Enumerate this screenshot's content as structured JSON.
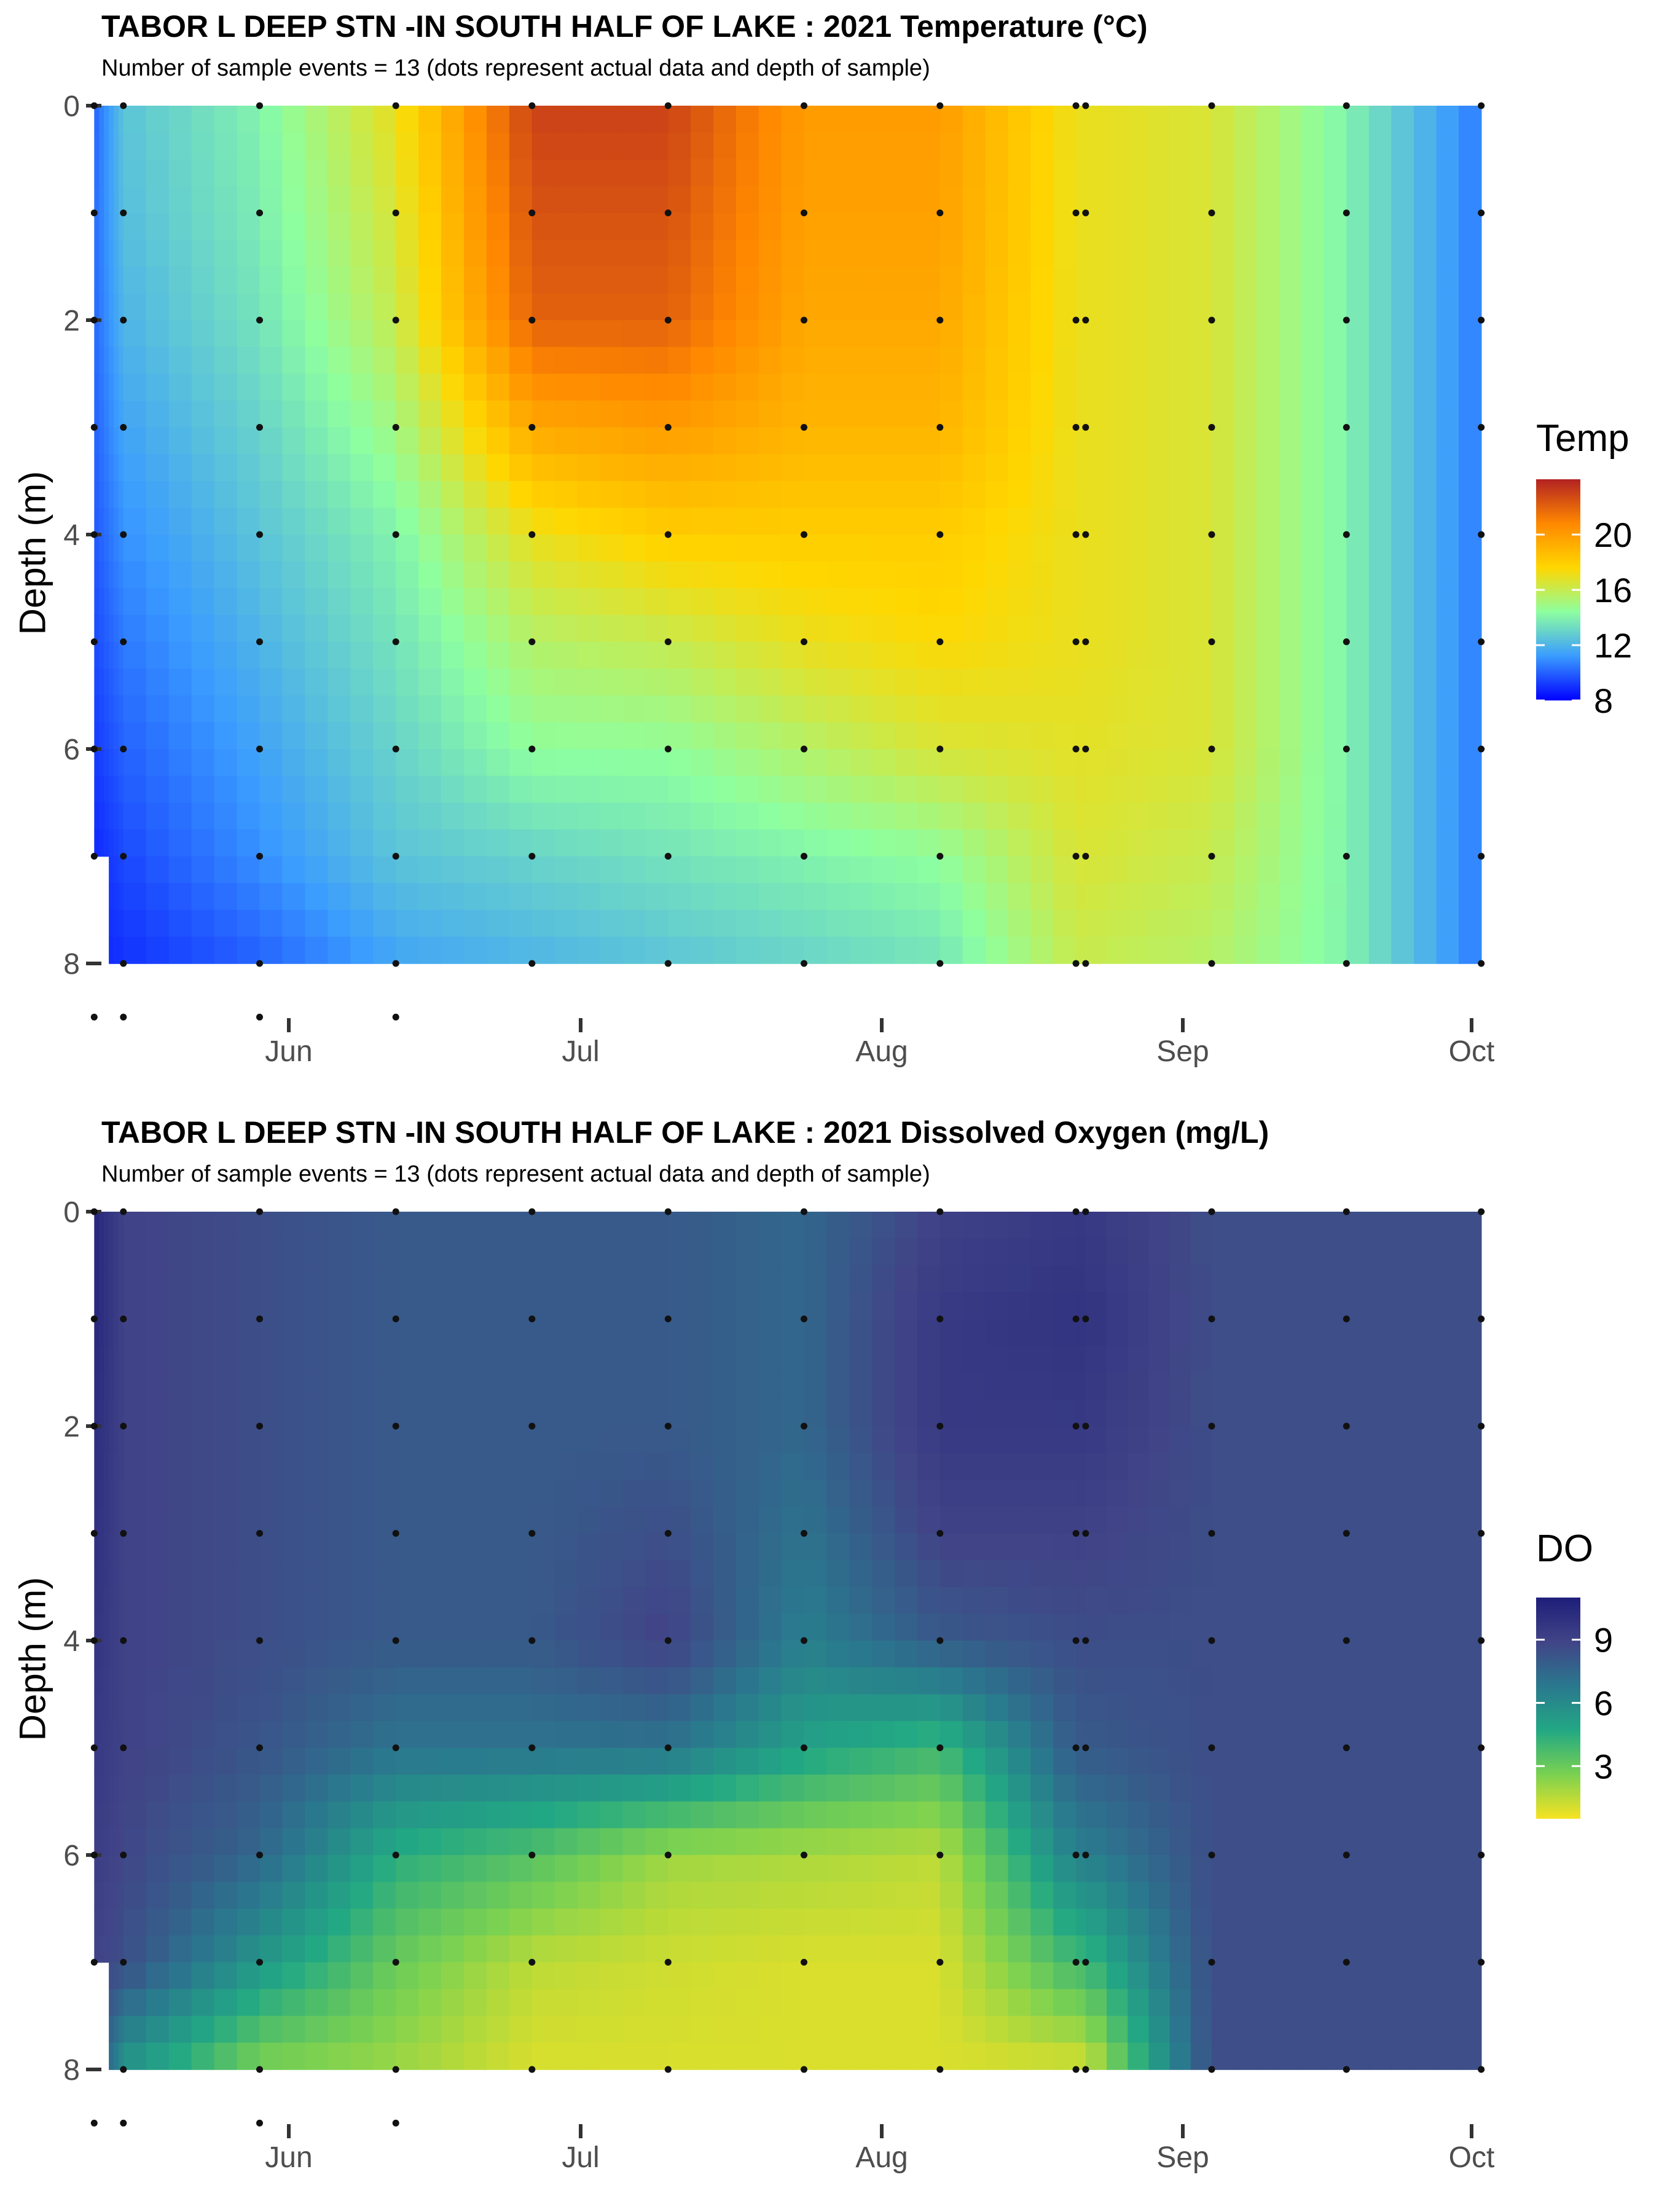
{
  "chart_data": [
    {
      "type": "heatmap",
      "id": "temp",
      "title": "TABOR L DEEP STN -IN SOUTH HALF OF LAKE :  2021 Temperature (°C)",
      "subtitle": "Number of sample events = 13 (dots represent actual data and depth of sample)",
      "ylabel": "Depth (m)",
      "xlabel": "",
      "x_ticks": [
        "Jun",
        "Jul",
        "Aug",
        "Sep",
        "Oct"
      ],
      "y_ticks": [
        "0",
        "2",
        "4",
        "6",
        "8"
      ],
      "ylim": [
        8.6,
        0
      ],
      "legend_title": "Temp",
      "legend_ticks": [
        "20",
        "16",
        "12",
        "8"
      ],
      "legend_range": [
        8,
        24
      ],
      "colors": [
        "#0000ff",
        "#3a9bff",
        "#8dffa0",
        "#ffd700",
        "#ff8800",
        "#b22222"
      ],
      "sample_dates": [
        "2021-05-12",
        "2021-05-15",
        "2021-05-29",
        "2021-06-12",
        "2021-06-26",
        "2021-07-10",
        "2021-07-24",
        "2021-08-07",
        "2021-08-21",
        "2021-08-22",
        "2021-09-04",
        "2021-09-18",
        "2021-10-02"
      ],
      "depths": [
        0,
        1,
        2,
        3,
        4,
        5,
        6,
        7,
        8
      ],
      "values": [
        [
          10.0,
          10.2,
          10.1,
          10.0,
          9.8,
          9.5,
          9.2,
          8.8,
          null
        ],
        [
          12.5,
          12.3,
          12.0,
          11.5,
          11.0,
          10.5,
          10.0,
          9.5,
          9.0
        ],
        [
          14.0,
          13.8,
          13.5,
          13.0,
          12.5,
          12.0,
          11.5,
          11.0,
          10.0
        ],
        [
          17.0,
          16.5,
          16.0,
          15.0,
          14.0,
          13.5,
          13.0,
          12.5,
          11.5
        ],
        [
          23.0,
          22.5,
          22.0,
          19.5,
          17.0,
          15.5,
          14.5,
          13.0,
          12.0
        ],
        [
          23.0,
          22.5,
          22.0,
          20.0,
          18.0,
          16.0,
          14.5,
          13.5,
          12.5
        ],
        [
          20.0,
          19.8,
          19.5,
          19.0,
          18.0,
          17.0,
          15.5,
          14.0,
          13.0
        ],
        [
          20.0,
          19.8,
          19.5,
          19.0,
          18.0,
          17.5,
          16.5,
          14.5,
          13.5
        ],
        [
          17.0,
          17.0,
          17.0,
          17.0,
          17.0,
          17.0,
          16.8,
          16.5,
          16.0
        ],
        [
          17.0,
          17.0,
          17.0,
          17.0,
          17.0,
          17.0,
          16.8,
          16.5,
          16.0
        ],
        [
          16.5,
          16.5,
          16.5,
          16.5,
          16.5,
          16.5,
          16.5,
          16.0,
          15.5
        ],
        [
          14.0,
          14.0,
          14.0,
          14.0,
          14.0,
          14.0,
          14.0,
          14.0,
          14.0
        ],
        [
          10.5,
          10.5,
          10.5,
          10.5,
          10.5,
          10.5,
          10.5,
          10.5,
          10.5
        ]
      ]
    },
    {
      "type": "heatmap",
      "id": "do",
      "title": "TABOR L DEEP STN -IN SOUTH HALF OF LAKE :  2021 Dissolved Oxygen (mg/L)",
      "subtitle": "Number of sample events = 13 (dots represent actual data and depth of sample)",
      "ylabel": "Depth (m)",
      "xlabel": "",
      "x_ticks": [
        "Jun",
        "Jul",
        "Aug",
        "Sep",
        "Oct"
      ],
      "y_ticks": [
        "0",
        "2",
        "4",
        "6",
        "8"
      ],
      "ylim": [
        8.6,
        0
      ],
      "legend_title": "DO",
      "legend_ticks": [
        "9",
        "6",
        "3"
      ],
      "legend_range": [
        0.5,
        11
      ],
      "colors": [
        "#f7e321",
        "#7ad151",
        "#22a884",
        "#2a788e",
        "#414487",
        "#1e1e7a"
      ],
      "sample_dates": [
        "2021-05-12",
        "2021-05-15",
        "2021-05-29",
        "2021-06-12",
        "2021-06-26",
        "2021-07-10",
        "2021-07-24",
        "2021-08-07",
        "2021-08-21",
        "2021-08-22",
        "2021-09-04",
        "2021-09-18",
        "2021-10-02"
      ],
      "depths": [
        0,
        1,
        2,
        3,
        4,
        5,
        6,
        7,
        8
      ],
      "values": [
        [
          10.5,
          10.5,
          10.2,
          10.0,
          9.8,
          9.5,
          9.3,
          9.0,
          null
        ],
        [
          9.0,
          9.0,
          9.0,
          9.0,
          9.0,
          9.0,
          8.8,
          8.5,
          5.5
        ],
        [
          8.5,
          8.5,
          8.5,
          8.5,
          8.5,
          8.2,
          7.5,
          5.5,
          2.5
        ],
        [
          8.0,
          8.0,
          8.0,
          8.0,
          8.0,
          7.0,
          4.5,
          3.0,
          2.0
        ],
        [
          8.0,
          8.0,
          8.0,
          8.0,
          8.0,
          7.0,
          3.5,
          1.5,
          1.0
        ],
        [
          8.0,
          8.0,
          8.0,
          8.5,
          9.0,
          7.0,
          2.0,
          1.2,
          1.0
        ],
        [
          7.5,
          7.5,
          7.5,
          7.0,
          6.5,
          5.0,
          1.8,
          1.0,
          1.0
        ],
        [
          9.0,
          9.5,
          9.5,
          9.0,
          8.0,
          4.0,
          1.5,
          1.0,
          1.0
        ],
        [
          9.5,
          9.8,
          9.5,
          9.0,
          8.5,
          8.0,
          6.5,
          4.0,
          1.0
        ],
        [
          9.5,
          9.8,
          9.5,
          9.0,
          8.5,
          8.0,
          6.5,
          4.0,
          1.0
        ],
        [
          8.5,
          8.5,
          8.5,
          8.5,
          8.5,
          8.5,
          8.5,
          8.5,
          8.5
        ],
        [
          8.5,
          8.5,
          8.5,
          8.5,
          8.5,
          8.5,
          8.5,
          8.5,
          8.5
        ],
        [
          8.5,
          8.5,
          8.5,
          8.5,
          8.5,
          8.5,
          8.5,
          8.5,
          8.5
        ]
      ]
    }
  ]
}
